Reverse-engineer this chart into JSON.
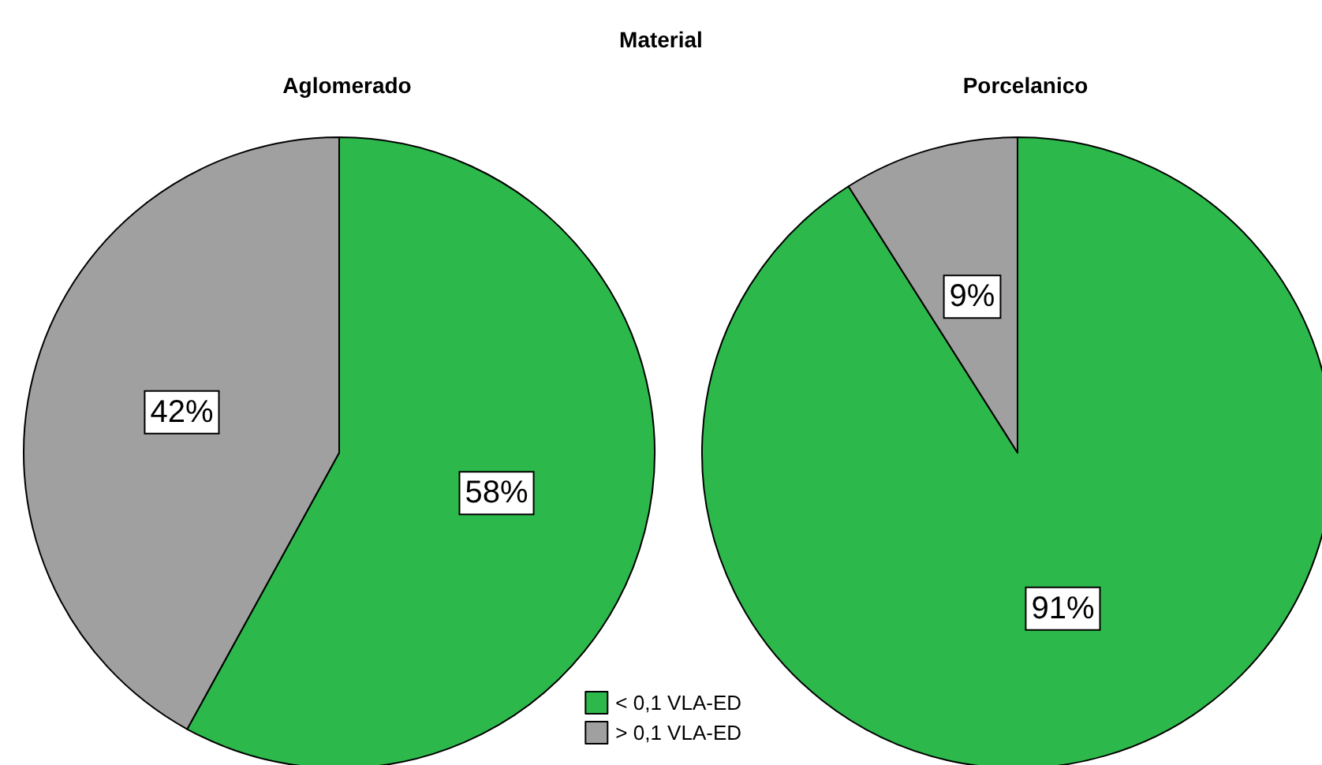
{
  "chart_data": [
    {
      "type": "pie",
      "title": "Aglomerado",
      "annotations": [
        "Material"
      ],
      "categories": [
        "< 0,1 VLA-ED",
        "> 0,1 VLA-ED"
      ],
      "values": [
        58,
        42
      ],
      "value_labels": [
        "58%",
        "42%"
      ],
      "colors": [
        "#2db84b",
        "#a0a0a0"
      ],
      "legend": "bottom right"
    },
    {
      "type": "pie",
      "title": "Porcelanico",
      "categories": [
        null,
        null
      ],
      "values": [
        91,
        9
      ],
      "value_labels": [
        "91%",
        "9%"
      ],
      "colors": [
        "#2db84b",
        "#a0a0a0"
      ]
    }
  ]
}
